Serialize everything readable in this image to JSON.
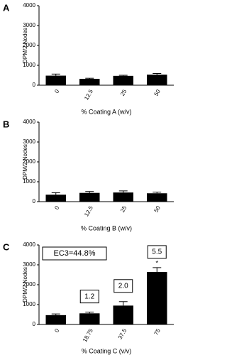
{
  "chart_data": [
    {
      "type": "bar",
      "panel_label": "A",
      "categories": [
        "0",
        "12.5",
        "25",
        "50"
      ],
      "values": [
        480,
        320,
        470,
        530
      ],
      "errors": [
        80,
        30,
        30,
        60
      ],
      "color": "#000000",
      "ylim": [
        0,
        4000
      ],
      "yticks": [
        0,
        1000,
        2000,
        3000,
        4000
      ],
      "ylabel": "DPM/2 Nodes",
      "xlabel": "% Coating A (w/v)"
    },
    {
      "type": "bar",
      "panel_label": "B",
      "categories": [
        "0",
        "12.5",
        "25",
        "50"
      ],
      "values": [
        350,
        440,
        460,
        420
      ],
      "errors": [
        100,
        70,
        80,
        60
      ],
      "color": "#000000",
      "ylim": [
        0,
        4000
      ],
      "yticks": [
        0,
        1000,
        2000,
        3000,
        4000
      ],
      "ylabel": "DPM/2 Nodes",
      "xlabel": "% Coating B (w/v)"
    },
    {
      "type": "bar",
      "panel_label": "C",
      "categories": [
        "0",
        "18.75",
        "37.5",
        "75"
      ],
      "values": [
        470,
        560,
        950,
        2640
      ],
      "errors": [
        60,
        60,
        200,
        220
      ],
      "color": "#000000",
      "ylim": [
        0,
        4000
      ],
      "yticks": [
        0,
        1000,
        2000,
        3000,
        4000
      ],
      "ylabel": "DPM/2 Nodes",
      "xlabel": "% Coating C (v/v)",
      "stimulation_index": [
        null,
        "1.2",
        "2.0",
        "5.5"
      ],
      "significance": [
        null,
        null,
        null,
        "*"
      ],
      "ec3_label": "EC3=44.8%"
    }
  ]
}
